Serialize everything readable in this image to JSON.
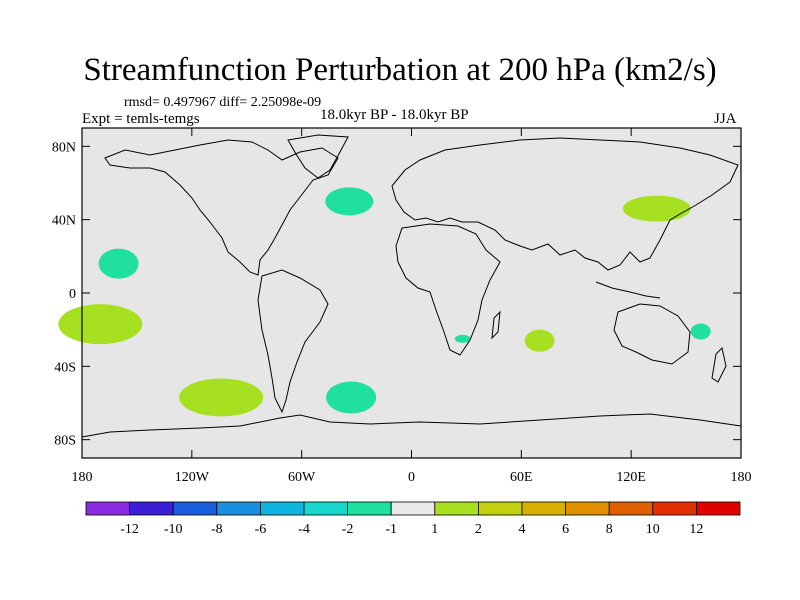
{
  "title": "Streamfunction Perturbation at 200 hPa (km2/s)",
  "stats": "rmsd= 0.497967 diff= 2.25098e-09",
  "experiment": "Expt = temls-temgs",
  "period": "18.0kyr BP - 18.0kyr BP",
  "season": "JJA",
  "map": {
    "lat_ticks": [
      "80N",
      "40N",
      "0",
      "40S",
      "80S"
    ],
    "lon_ticks": [
      "180",
      "120W",
      "60W",
      "0",
      "60E",
      "120E",
      "180"
    ],
    "ocean_color": "#e6e6e6"
  },
  "colorbar": {
    "colors": [
      "#8a2be2",
      "#3a1fd6",
      "#1a5ee0",
      "#1a8fe0",
      "#10b4e0",
      "#18d6cc",
      "#20e0a0",
      "#e8e8e8",
      "#a6e020",
      "#c2d010",
      "#d8b000",
      "#e09000",
      "#e06000",
      "#e03000",
      "#e00000"
    ],
    "labels": [
      "-12",
      "-10",
      "-8",
      "-6",
      "-4",
      "-2",
      "-1",
      "1",
      "2",
      "4",
      "6",
      "8",
      "10",
      "12"
    ]
  },
  "anomaly_blobs": [
    {
      "name": "blob-north-atlantic",
      "lon": -34,
      "lat": 50,
      "category": "-1"
    },
    {
      "name": "blob-north-pacific",
      "lon": -160,
      "lat": 16,
      "category": "-1"
    },
    {
      "name": "blob-east-asia",
      "lon": 134,
      "lat": 46,
      "category": "2"
    },
    {
      "name": "blob-south-pacific-west",
      "lon": -170,
      "lat": -17,
      "category": "2"
    },
    {
      "name": "blob-south-pacific-far",
      "lon": -104,
      "lat": -57,
      "category": "2"
    },
    {
      "name": "blob-south-atlantic",
      "lon": -33,
      "lat": -57,
      "category": "-1"
    },
    {
      "name": "blob-indian-ocean",
      "lon": 70,
      "lat": -26,
      "category": "2"
    },
    {
      "name": "blob-south-africa",
      "lon": 28,
      "lat": -25,
      "category": "-1"
    },
    {
      "name": "blob-east-australia",
      "lon": 158,
      "lat": -21,
      "category": "-1"
    }
  ]
}
